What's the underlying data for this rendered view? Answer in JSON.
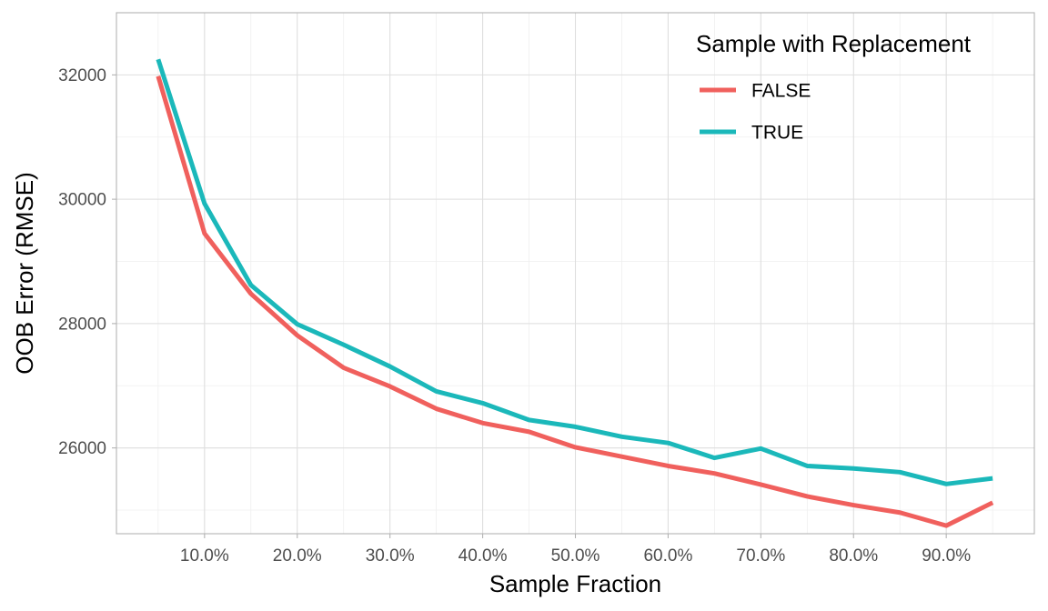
{
  "chart_data": {
    "type": "line",
    "title": "",
    "xlabel": "Sample Fraction",
    "ylabel": "OOB Error (RMSE)",
    "x": [
      0.05,
      0.1,
      0.15,
      0.2,
      0.25,
      0.3,
      0.35,
      0.4,
      0.45,
      0.5,
      0.55,
      0.6,
      0.65,
      0.7,
      0.75,
      0.8,
      0.85,
      0.9,
      0.95
    ],
    "xlim": [
      0.005,
      0.995
    ],
    "ylim": [
      24620,
      33000
    ],
    "x_ticks": [
      {
        "value": 0.1,
        "label": "10.0%"
      },
      {
        "value": 0.2,
        "label": "20.0%"
      },
      {
        "value": 0.3,
        "label": "30.0%"
      },
      {
        "value": 0.4,
        "label": "40.0%"
      },
      {
        "value": 0.5,
        "label": "50.0%"
      },
      {
        "value": 0.6,
        "label": "60.0%"
      },
      {
        "value": 0.7,
        "label": "70.0%"
      },
      {
        "value": 0.8,
        "label": "80.0%"
      },
      {
        "value": 0.9,
        "label": "90.0%"
      }
    ],
    "y_ticks": [
      {
        "value": 26000,
        "label": "26000"
      },
      {
        "value": 28000,
        "label": "28000"
      },
      {
        "value": 30000,
        "label": "30000"
      },
      {
        "value": 32000,
        "label": "32000"
      }
    ],
    "x_minor_ticks": [
      0.05,
      0.15,
      0.25,
      0.35,
      0.45,
      0.55,
      0.65,
      0.75,
      0.85,
      0.95
    ],
    "y_minor_ticks": [
      25000,
      27000,
      29000,
      31000
    ],
    "grid": true,
    "legend": {
      "title": "Sample with Replacement",
      "placement": "top-right"
    },
    "series": [
      {
        "name": "FALSE",
        "color": "#F0605D",
        "values": [
          31980,
          29450,
          28480,
          27810,
          27290,
          26990,
          26630,
          26400,
          26260,
          26010,
          25860,
          25710,
          25590,
          25410,
          25220,
          25080,
          24960,
          24750,
          25120
        ]
      },
      {
        "name": "TRUE",
        "color": "#1BB8BA",
        "values": [
          32250,
          29930,
          28620,
          27990,
          27660,
          27310,
          26910,
          26720,
          26450,
          26340,
          26180,
          26080,
          25840,
          25990,
          25710,
          25670,
          25610,
          25420,
          25510
        ]
      }
    ]
  }
}
